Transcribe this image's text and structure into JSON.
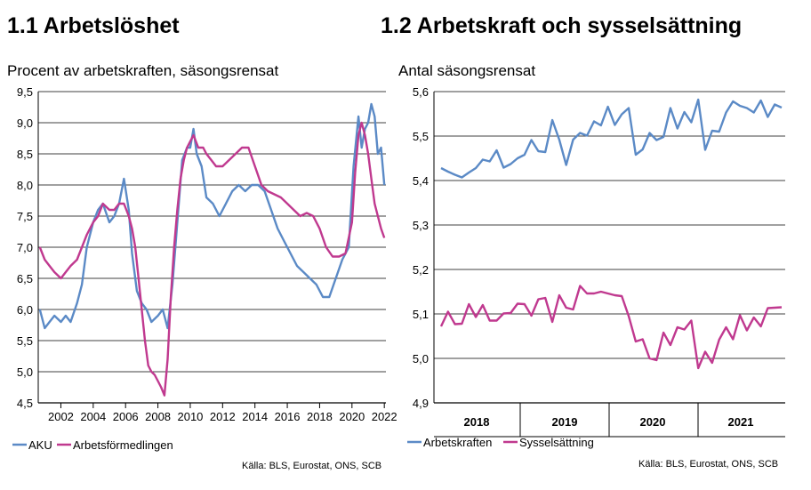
{
  "left": {
    "title": "1.1 Arbetslöshet",
    "subtitle": "Procent av arbetskraften, säsongsrensat",
    "source": "Källa: BLS, Eurostat, ONS, SCB"
  },
  "right": {
    "title": "1.2 Arbetskraft och sysselsättning",
    "subtitle": "Antal säsongsrensat",
    "source": "Källa: BLS, Eurostat, ONS, SCB"
  },
  "chart_data": [
    {
      "type": "line",
      "title": "1.1 Arbetslöshet",
      "ylabel": "Procent av arbetskraften, säsongsrensat",
      "xlim": [
        2000.6,
        2022.1
      ],
      "ylim": [
        4.5,
        9.5
      ],
      "y_ticks": [
        "4,5",
        "5,0",
        "5,5",
        "6,0",
        "6,5",
        "7,0",
        "7,5",
        "8,0",
        "8,5",
        "9,0",
        "9,5"
      ],
      "x_ticks": [
        "2002",
        "2004",
        "2006",
        "2008",
        "2010",
        "2012",
        "2014",
        "2016",
        "2018",
        "2020",
        "2022"
      ],
      "grid": true,
      "legend": "bottom-left",
      "series": [
        {
          "name": "AKU",
          "color": "#5b8ac6",
          "x": [
            2000.7,
            2001.0,
            2001.3,
            2001.6,
            2002.0,
            2002.3,
            2002.6,
            2003.0,
            2003.3,
            2003.6,
            2004.0,
            2004.3,
            2004.6,
            2005.0,
            2005.3,
            2005.6,
            2005.9,
            2006.2,
            2006.4,
            2006.7,
            2007.0,
            2007.3,
            2007.6,
            2008.0,
            2008.3,
            2008.6,
            2008.9,
            2009.2,
            2009.5,
            2009.8,
            2010.0,
            2010.2,
            2010.4,
            2010.7,
            2011.0,
            2011.4,
            2011.8,
            2012.2,
            2012.6,
            2013.0,
            2013.4,
            2013.8,
            2014.2,
            2014.6,
            2015.0,
            2015.4,
            2015.8,
            2016.2,
            2016.6,
            2017.0,
            2017.4,
            2017.8,
            2018.2,
            2018.6,
            2019.0,
            2019.4,
            2019.8,
            2020.1,
            2020.4,
            2020.6,
            2020.8,
            2021.0,
            2021.2,
            2021.4,
            2021.6,
            2021.8,
            2022.0
          ],
          "values": [
            6.0,
            5.7,
            5.8,
            5.9,
            5.8,
            5.9,
            5.8,
            6.1,
            6.4,
            7.0,
            7.4,
            7.6,
            7.7,
            7.4,
            7.5,
            7.7,
            8.1,
            7.6,
            6.9,
            6.3,
            6.1,
            6.0,
            5.8,
            5.9,
            6.0,
            5.7,
            6.4,
            7.4,
            8.4,
            8.6,
            8.6,
            8.9,
            8.5,
            8.3,
            7.8,
            7.7,
            7.5,
            7.7,
            7.9,
            8.0,
            7.9,
            8.0,
            8.0,
            7.9,
            7.6,
            7.3,
            7.1,
            6.9,
            6.7,
            6.6,
            6.5,
            6.4,
            6.2,
            6.2,
            6.5,
            6.8,
            7.0,
            8.3,
            9.1,
            8.6,
            8.9,
            9.0,
            9.3,
            9.1,
            8.5,
            8.6,
            8.0
          ]
        },
        {
          "name": "Arbetsförmedlingen",
          "color": "#c0398f",
          "x": [
            2000.7,
            2001.0,
            2001.3,
            2001.6,
            2002.0,
            2002.3,
            2002.6,
            2003.0,
            2003.3,
            2003.6,
            2004.0,
            2004.3,
            2004.6,
            2005.0,
            2005.3,
            2005.6,
            2005.9,
            2006.2,
            2006.4,
            2006.6,
            2006.8,
            2007.0,
            2007.2,
            2007.4,
            2007.6,
            2007.8,
            2008.0,
            2008.2,
            2008.4,
            2008.6,
            2008.8,
            2009.0,
            2009.2,
            2009.4,
            2009.6,
            2009.8,
            2010.0,
            2010.2,
            2010.5,
            2010.8,
            2011.0,
            2011.3,
            2011.6,
            2012.0,
            2012.4,
            2012.8,
            2013.2,
            2013.6,
            2014.0,
            2014.4,
            2014.8,
            2015.2,
            2015.6,
            2016.0,
            2016.4,
            2016.8,
            2017.2,
            2017.6,
            2018.0,
            2018.4,
            2018.8,
            2019.2,
            2019.6,
            2020.0,
            2020.2,
            2020.4,
            2020.6,
            2020.8,
            2021.0,
            2021.2,
            2021.4,
            2021.6,
            2021.8,
            2022.0
          ],
          "values": [
            7.0,
            6.8,
            6.7,
            6.6,
            6.5,
            6.6,
            6.7,
            6.8,
            7.0,
            7.2,
            7.4,
            7.5,
            7.7,
            7.6,
            7.6,
            7.7,
            7.7,
            7.5,
            7.3,
            7.0,
            6.5,
            6.0,
            5.5,
            5.1,
            5.0,
            4.95,
            4.85,
            4.75,
            4.62,
            5.2,
            6.2,
            7.0,
            7.6,
            8.1,
            8.4,
            8.6,
            8.7,
            8.8,
            8.6,
            8.6,
            8.5,
            8.4,
            8.3,
            8.3,
            8.4,
            8.5,
            8.6,
            8.6,
            8.3,
            8.0,
            7.9,
            7.85,
            7.8,
            7.7,
            7.6,
            7.5,
            7.55,
            7.5,
            7.3,
            7.0,
            6.85,
            6.85,
            6.9,
            7.4,
            8.2,
            8.8,
            9.0,
            8.8,
            8.5,
            8.1,
            7.7,
            7.5,
            7.3,
            7.15
          ]
        }
      ]
    },
    {
      "type": "line",
      "title": "1.2 Arbetskraft och sysselsättning",
      "ylabel": "Antal säsongsrensat",
      "ylim": [
        4.9,
        5.6
      ],
      "y_ticks": [
        "4,9",
        "5,0",
        "5,1",
        "5,2",
        "5,3",
        "5,4",
        "5,5",
        "5,6"
      ],
      "x_ticks": [
        "2018",
        "2019",
        "2020",
        "2021"
      ],
      "grid": true,
      "legend": "bottom-left",
      "series": [
        {
          "name": "Arbetskraften",
          "color": "#5b8ac6",
          "values": [
            5.428,
            5.42,
            5.413,
            5.407,
            5.418,
            5.428,
            5.447,
            5.443,
            5.468,
            5.429,
            5.437,
            5.45,
            5.458,
            5.491,
            5.466,
            5.464,
            5.536,
            5.492,
            5.435,
            5.492,
            5.507,
            5.501,
            5.533,
            5.524,
            5.566,
            5.525,
            5.549,
            5.563,
            5.458,
            5.47,
            5.507,
            5.491,
            5.498,
            5.563,
            5.517,
            5.554,
            5.531,
            5.582,
            5.469,
            5.512,
            5.51,
            5.553,
            5.578,
            5.568,
            5.563,
            5.553,
            5.58,
            5.543,
            5.571,
            5.564
          ]
        },
        {
          "name": "Sysselsättning",
          "color": "#c0398f",
          "values": [
            5.072,
            5.105,
            5.077,
            5.078,
            5.122,
            5.093,
            5.12,
            5.085,
            5.085,
            5.101,
            5.102,
            5.123,
            5.122,
            5.096,
            5.133,
            5.136,
            5.082,
            5.142,
            5.114,
            5.11,
            5.163,
            5.146,
            5.146,
            5.15,
            5.146,
            5.142,
            5.14,
            5.095,
            5.038,
            5.043,
            5.0,
            4.996,
            5.058,
            5.03,
            5.07,
            5.065,
            5.085,
            4.978,
            5.015,
            4.99,
            5.042,
            5.07,
            5.043,
            5.097,
            5.063,
            5.092,
            5.072,
            5.113,
            5.114,
            5.115
          ]
        }
      ]
    }
  ]
}
